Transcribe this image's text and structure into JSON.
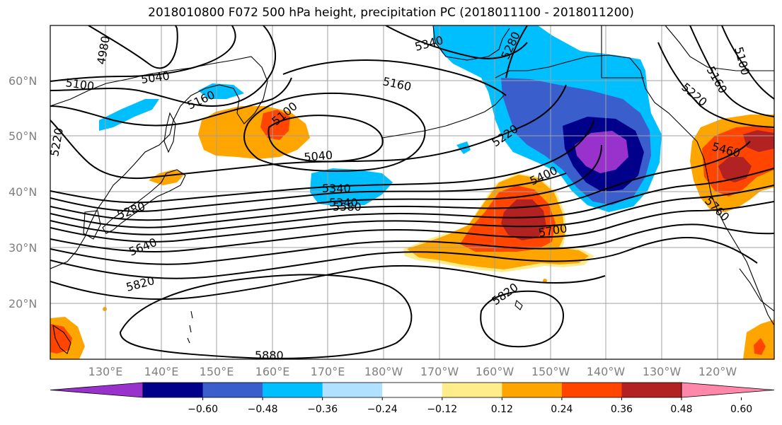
{
  "title": "2018010800 F072 500 hPa height, precipitation PC (2018011100 - 2018011200)",
  "lat_labels": [
    "60°N",
    "50°N",
    "40°N",
    "30°N",
    "20°N"
  ],
  "lon_labels": [
    "130°E",
    "140°E",
    "150°E",
    "160°E",
    "170°E",
    "180°W",
    "170°W",
    "160°W",
    "150°W",
    "140°W",
    "130°W",
    "120°W"
  ],
  "colorbar": {
    "ticks": [
      "−0.60",
      "−0.48",
      "−0.36",
      "−0.24",
      "−0.12",
      "0.12",
      "0.24",
      "0.36",
      "0.48",
      "0.60"
    ],
    "colors": [
      "#9932cc",
      "#00008b",
      "#3a5fcd",
      "#00bfff",
      "#b0e2ff",
      "#ffffff",
      "#ffec8b",
      "#ffa500",
      "#ff4500",
      "#b22222",
      "#ff88aa"
    ]
  },
  "contour_labels": [
    "4980",
    "5040",
    "5100",
    "5160",
    "5220",
    "5100",
    "5040",
    "5340",
    "5160",
    "5220",
    "5280",
    "5340",
    "5280",
    "5340",
    "5400",
    "5460",
    "5580",
    "5640",
    "5700",
    "5760",
    "5820",
    "5820",
    "5880",
    "5100",
    "5160",
    "5220"
  ],
  "map_colors": {
    "purple": "#9932cc",
    "navy": "#00008b",
    "blue": "#3a5fcd",
    "sky": "#00bfff",
    "lightyellow": "#ffec8b",
    "orange": "#ffa500",
    "red": "#ff4500",
    "darkred": "#b22222"
  }
}
